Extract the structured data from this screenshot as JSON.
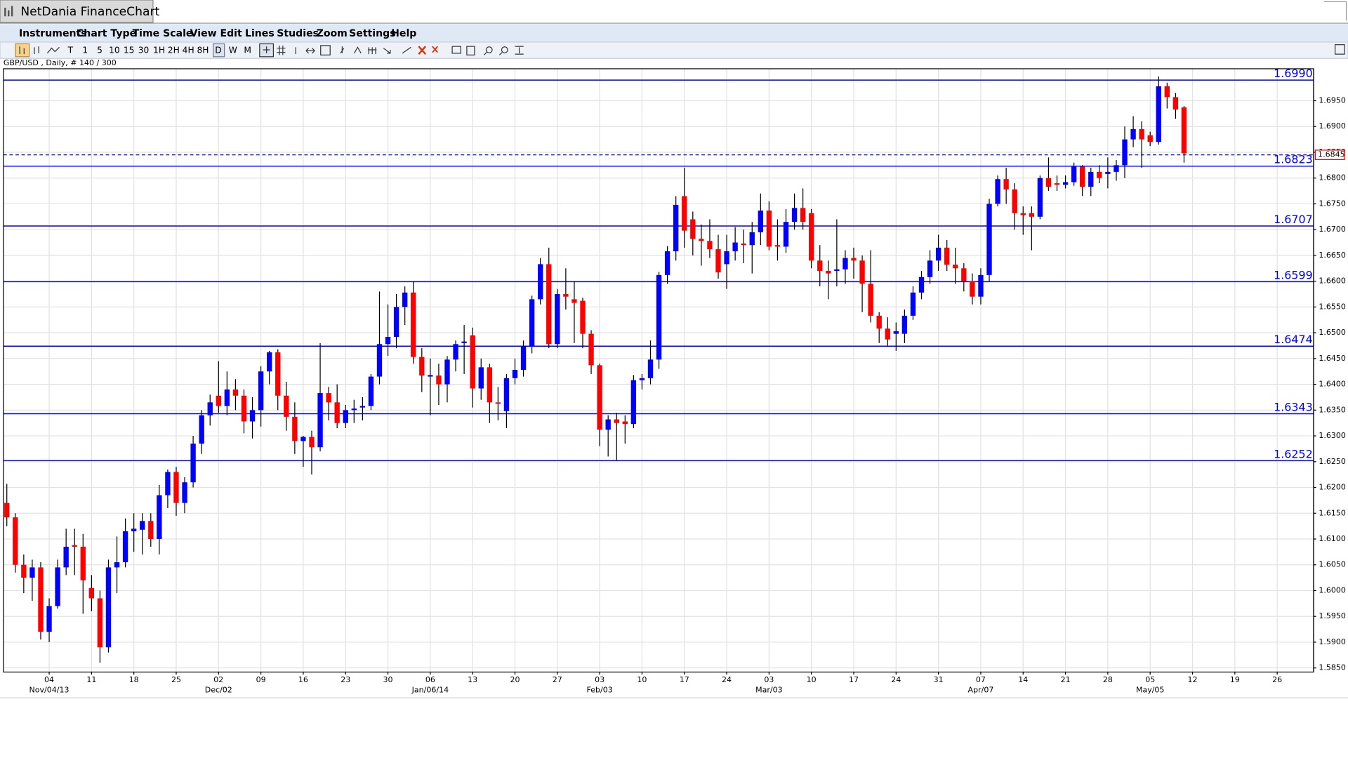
{
  "window_title": "NetDania FinanceChart",
  "menu": [
    "Instruments",
    "Chart Type",
    "Time Scale",
    "View",
    "Edit",
    "Lines",
    "Studies",
    "Zoom",
    "Settings",
    "Help"
  ],
  "toolbar": [
    "T",
    "1",
    "5",
    "10",
    "15",
    "30",
    "1H",
    "2H",
    "4H",
    "8H",
    "D",
    "W",
    "M"
  ],
  "chart_data": {
    "type": "candlestick",
    "subtitle": "GBP/USD , Daily, # 140 / 300",
    "colors": {
      "up": "#0000ff",
      "down": "#ff0000",
      "wick": "#000000",
      "level": "#0000ff"
    },
    "grid": true,
    "open": [
      1.617,
      1.6142,
      1.605,
      1.6025,
      1.6045,
      1.592,
      1.597,
      1.6045,
      1.6088,
      1.6085,
      1.6005,
      1.5985,
      1.589,
      1.6045,
      1.6055,
      1.6115,
      1.6118,
      1.6135,
      1.61,
      1.6185,
      1.623,
      1.617,
      1.621,
      1.6285,
      1.634,
      1.6378,
      1.6358,
      1.639,
      1.6378,
      1.6328,
      1.635,
      1.6425,
      1.6462,
      1.6378,
      1.6337,
      1.629,
      1.6298,
      1.6278,
      1.6383,
      1.6365,
      1.6325,
      1.635,
      1.6355,
      1.6358,
      1.6415,
      1.6478,
      1.6492,
      1.655,
      1.6578,
      1.6453,
      1.6415,
      1.6417,
      1.64,
      1.6448,
      1.648,
      1.6495,
      1.6392,
      1.6433,
      1.6365,
      1.6348,
      1.6412,
      1.6428,
      1.6473,
      1.6565,
      1.6633,
      1.6478,
      1.6575,
      1.6565,
      1.6562,
      1.6498,
      1.6437,
      1.6312,
      1.6332,
      1.6328,
      1.6323,
      1.6408,
      1.6412,
      1.6448,
      1.6612,
      1.6658,
      1.6765,
      1.672,
      1.6682,
      1.6678,
      1.6662,
      1.6633,
      1.6658,
      1.6673,
      1.667,
      1.6695,
      1.6737,
      1.667,
      1.6667,
      1.6715,
      1.6742,
      1.6732,
      1.664,
      1.662,
      1.662,
      1.6623,
      1.6645,
      1.664,
      1.6595,
      1.6533,
      1.6508,
      1.6498,
      1.6498,
      1.6533,
      1.6578,
      1.6608,
      1.664,
      1.6665,
      1.6632,
      1.6625,
      1.66,
      1.657,
      1.6612,
      1.675,
      1.6798,
      1.6778,
      1.6732,
      1.6732,
      1.6725,
      1.68,
      1.679,
      1.6787,
      1.6792,
      1.6822,
      1.6783,
      1.6812,
      1.6808,
      1.6812,
      1.6825,
      1.6875,
      1.6895,
      1.6883,
      1.687,
      1.6978,
      1.6957,
      1.6937
    ],
    "high": [
      1.6207,
      1.615,
      1.607,
      1.606,
      1.6055,
      1.5985,
      1.606,
      1.612,
      1.612,
      1.611,
      1.603,
      1.6,
      1.606,
      1.6105,
      1.614,
      1.615,
      1.615,
      1.615,
      1.6205,
      1.6235,
      1.624,
      1.622,
      1.63,
      1.635,
      1.638,
      1.6445,
      1.6425,
      1.641,
      1.639,
      1.6375,
      1.6435,
      1.6465,
      1.6468,
      1.6405,
      1.6365,
      1.63,
      1.631,
      1.648,
      1.6395,
      1.64,
      1.636,
      1.637,
      1.6375,
      1.642,
      1.658,
      1.6555,
      1.6575,
      1.659,
      1.66,
      1.647,
      1.645,
      1.644,
      1.6455,
      1.6485,
      1.6515,
      1.651,
      1.645,
      1.644,
      1.6395,
      1.642,
      1.645,
      1.6485,
      1.6572,
      1.6645,
      1.6665,
      1.6585,
      1.6625,
      1.66,
      1.6568,
      1.6505,
      1.644,
      1.634,
      1.6345,
      1.634,
      1.6418,
      1.642,
      1.6485,
      1.6618,
      1.6668,
      1.6765,
      1.682,
      1.6735,
      1.671,
      1.672,
      1.669,
      1.669,
      1.6705,
      1.67,
      1.6715,
      1.677,
      1.6755,
      1.672,
      1.674,
      1.677,
      1.678,
      1.674,
      1.667,
      1.664,
      1.672,
      1.666,
      1.6665,
      1.665,
      1.666,
      1.654,
      1.653,
      1.652,
      1.6545,
      1.659,
      1.662,
      1.666,
      1.669,
      1.668,
      1.6665,
      1.6635,
      1.6615,
      1.6625,
      1.676,
      1.6805,
      1.682,
      1.679,
      1.6745,
      1.6745,
      1.6805,
      1.684,
      1.6805,
      1.6805,
      1.683,
      1.6825,
      1.682,
      1.6825,
      1.684,
      1.6835,
      1.69,
      1.692,
      1.691,
      1.689,
      1.6997,
      1.6985,
      1.6965,
      1.694
    ],
    "low": [
      1.6125,
      1.6035,
      1.5995,
      1.598,
      1.5905,
      1.59,
      1.5965,
      1.603,
      1.603,
      1.5955,
      1.596,
      1.586,
      1.588,
      1.5995,
      1.6045,
      1.6075,
      1.607,
      1.6085,
      1.607,
      1.616,
      1.6145,
      1.615,
      1.62,
      1.6265,
      1.632,
      1.6345,
      1.634,
      1.635,
      1.6305,
      1.6295,
      1.6318,
      1.64,
      1.635,
      1.631,
      1.6265,
      1.624,
      1.6225,
      1.627,
      1.633,
      1.6315,
      1.6315,
      1.6325,
      1.633,
      1.635,
      1.64,
      1.6455,
      1.647,
      1.6515,
      1.644,
      1.6385,
      1.634,
      1.636,
      1.6365,
      1.6425,
      1.642,
      1.6355,
      1.637,
      1.6325,
      1.633,
      1.6315,
      1.64,
      1.6415,
      1.646,
      1.6555,
      1.647,
      1.647,
      1.6545,
      1.648,
      1.647,
      1.642,
      1.628,
      1.626,
      1.6253,
      1.6285,
      1.6315,
      1.639,
      1.64,
      1.643,
      1.6595,
      1.664,
      1.6665,
      1.665,
      1.663,
      1.6645,
      1.6605,
      1.6585,
      1.664,
      1.6635,
      1.6615,
      1.667,
      1.666,
      1.664,
      1.6655,
      1.67,
      1.67,
      1.6625,
      1.659,
      1.6565,
      1.659,
      1.6595,
      1.6605,
      1.654,
      1.652,
      1.648,
      1.6475,
      1.6465,
      1.648,
      1.6525,
      1.6565,
      1.6595,
      1.662,
      1.662,
      1.6595,
      1.658,
      1.6555,
      1.6555,
      1.66,
      1.6745,
      1.675,
      1.67,
      1.669,
      1.666,
      1.672,
      1.6775,
      1.6775,
      1.678,
      1.6785,
      1.6765,
      1.6765,
      1.679,
      1.678,
      1.6795,
      1.68,
      1.686,
      1.682,
      1.6862,
      1.6865,
      1.6935,
      1.6915,
      1.683
    ],
    "close": [
      1.6142,
      1.605,
      1.6025,
      1.6045,
      1.592,
      1.597,
      1.6045,
      1.6085,
      1.6085,
      1.602,
      1.5985,
      1.589,
      1.6045,
      1.6055,
      1.6115,
      1.612,
      1.6135,
      1.61,
      1.6185,
      1.623,
      1.617,
      1.621,
      1.6285,
      1.634,
      1.6365,
      1.6358,
      1.639,
      1.6378,
      1.6328,
      1.635,
      1.6425,
      1.6462,
      1.6378,
      1.6337,
      1.629,
      1.6298,
      1.6278,
      1.6383,
      1.6365,
      1.6325,
      1.635,
      1.6353,
      1.6358,
      1.6415,
      1.6478,
      1.6492,
      1.655,
      1.6578,
      1.6453,
      1.6417,
      1.6418,
      1.64,
      1.6448,
      1.6478,
      1.6483,
      1.6392,
      1.6433,
      1.6365,
      1.6363,
      1.6412,
      1.6428,
      1.6473,
      1.6565,
      1.6633,
      1.6478,
      1.6575,
      1.657,
      1.6558,
      1.6498,
      1.6437,
      1.6312,
      1.6332,
      1.6325,
      1.6323,
      1.6408,
      1.6412,
      1.6448,
      1.6612,
      1.6658,
      1.6748,
      1.6698,
      1.6682,
      1.6678,
      1.6662,
      1.6617,
      1.6658,
      1.6675,
      1.667,
      1.6695,
      1.6737,
      1.6667,
      1.6667,
      1.6715,
      1.6742,
      1.6715,
      1.664,
      1.662,
      1.6615,
      1.6623,
      1.6645,
      1.664,
      1.6595,
      1.6533,
      1.6508,
      1.6487,
      1.6503,
      1.6533,
      1.6578,
      1.6608,
      1.664,
      1.6665,
      1.6632,
      1.6625,
      1.66,
      1.657,
      1.6612,
      1.675,
      1.6798,
      1.6778,
      1.6732,
      1.6728,
      1.6725,
      1.68,
      1.6783,
      1.6787,
      1.6792,
      1.6822,
      1.6783,
      1.6812,
      1.68,
      1.6812,
      1.6825,
      1.6875,
      1.6895,
      1.6875,
      1.687,
      1.6978,
      1.6957,
      1.6933,
      1.6848
    ],
    "xlim": [
      -0.4,
      154.3
    ],
    "ylim": [
      1.5842,
      1.7012
    ],
    "xticks": [
      {
        "value": 5,
        "label": "04"
      },
      {
        "value": 10,
        "label": "11"
      },
      {
        "value": 15,
        "label": "18"
      },
      {
        "value": 20,
        "label": "25"
      },
      {
        "value": 25,
        "label": "02"
      },
      {
        "value": 30,
        "label": "09"
      },
      {
        "value": 35,
        "label": "16"
      },
      {
        "value": 40,
        "label": "23"
      },
      {
        "value": 45,
        "label": "30"
      },
      {
        "value": 50,
        "label": "06"
      },
      {
        "value": 55,
        "label": "13"
      },
      {
        "value": 60,
        "label": "20"
      },
      {
        "value": 65,
        "label": "27"
      },
      {
        "value": 70,
        "label": "03"
      },
      {
        "value": 75,
        "label": "10"
      },
      {
        "value": 80,
        "label": "17"
      },
      {
        "value": 85,
        "label": "24"
      },
      {
        "value": 90,
        "label": "03"
      },
      {
        "value": 95,
        "label": "10"
      },
      {
        "value": 100,
        "label": "17"
      },
      {
        "value": 105,
        "label": "24"
      },
      {
        "value": 110,
        "label": "31"
      },
      {
        "value": 115,
        "label": "07"
      },
      {
        "value": 120,
        "label": "14"
      },
      {
        "value": 125,
        "label": "21"
      },
      {
        "value": 130,
        "label": "28"
      },
      {
        "value": 135,
        "label": "05"
      },
      {
        "value": 140,
        "label": "12"
      },
      {
        "value": 145,
        "label": "19"
      },
      {
        "value": 150,
        "label": "26"
      }
    ],
    "xticks_major": [
      {
        "value": 5,
        "label": "Nov/04/13"
      },
      {
        "value": 25,
        "label": "Dec/02"
      },
      {
        "value": 50,
        "label": "Jan/06/14"
      },
      {
        "value": 70,
        "label": "Feb/03"
      },
      {
        "value": 90,
        "label": "Mar/03"
      },
      {
        "value": 115,
        "label": "Apr/07"
      },
      {
        "value": 135,
        "label": "May/05"
      }
    ],
    "yticks": [
      {
        "value": 1.585,
        "label": "1.5850"
      },
      {
        "value": 1.59,
        "label": "1.5900"
      },
      {
        "value": 1.595,
        "label": "1.5950"
      },
      {
        "value": 1.6,
        "label": "1.6000"
      },
      {
        "value": 1.605,
        "label": "1.6050"
      },
      {
        "value": 1.61,
        "label": "1.6100"
      },
      {
        "value": 1.615,
        "label": "1.6150"
      },
      {
        "value": 1.62,
        "label": "1.6200"
      },
      {
        "value": 1.625,
        "label": "1.6250"
      },
      {
        "value": 1.63,
        "label": "1.6300"
      },
      {
        "value": 1.635,
        "label": "1.6350"
      },
      {
        "value": 1.64,
        "label": "1.6400"
      },
      {
        "value": 1.645,
        "label": "1.6450"
      },
      {
        "value": 1.65,
        "label": "1.6500"
      },
      {
        "value": 1.655,
        "label": "1.6550"
      },
      {
        "value": 1.66,
        "label": "1.6600"
      },
      {
        "value": 1.665,
        "label": "1.6650"
      },
      {
        "value": 1.67,
        "label": "1.6700"
      },
      {
        "value": 1.675,
        "label": "1.6750"
      },
      {
        "value": 1.68,
        "label": "1.6800"
      },
      {
        "value": 1.685,
        "label": "1.6850"
      },
      {
        "value": 1.69,
        "label": "1.6900"
      },
      {
        "value": 1.695,
        "label": "1.6950"
      }
    ],
    "levels": [
      {
        "value": 1.699,
        "label": "1.6990"
      },
      1.6823,
      1.6707,
      1.6599,
      1.6474,
      1.6343,
      1.6252
    ],
    "last_price": 1.6845
  }
}
